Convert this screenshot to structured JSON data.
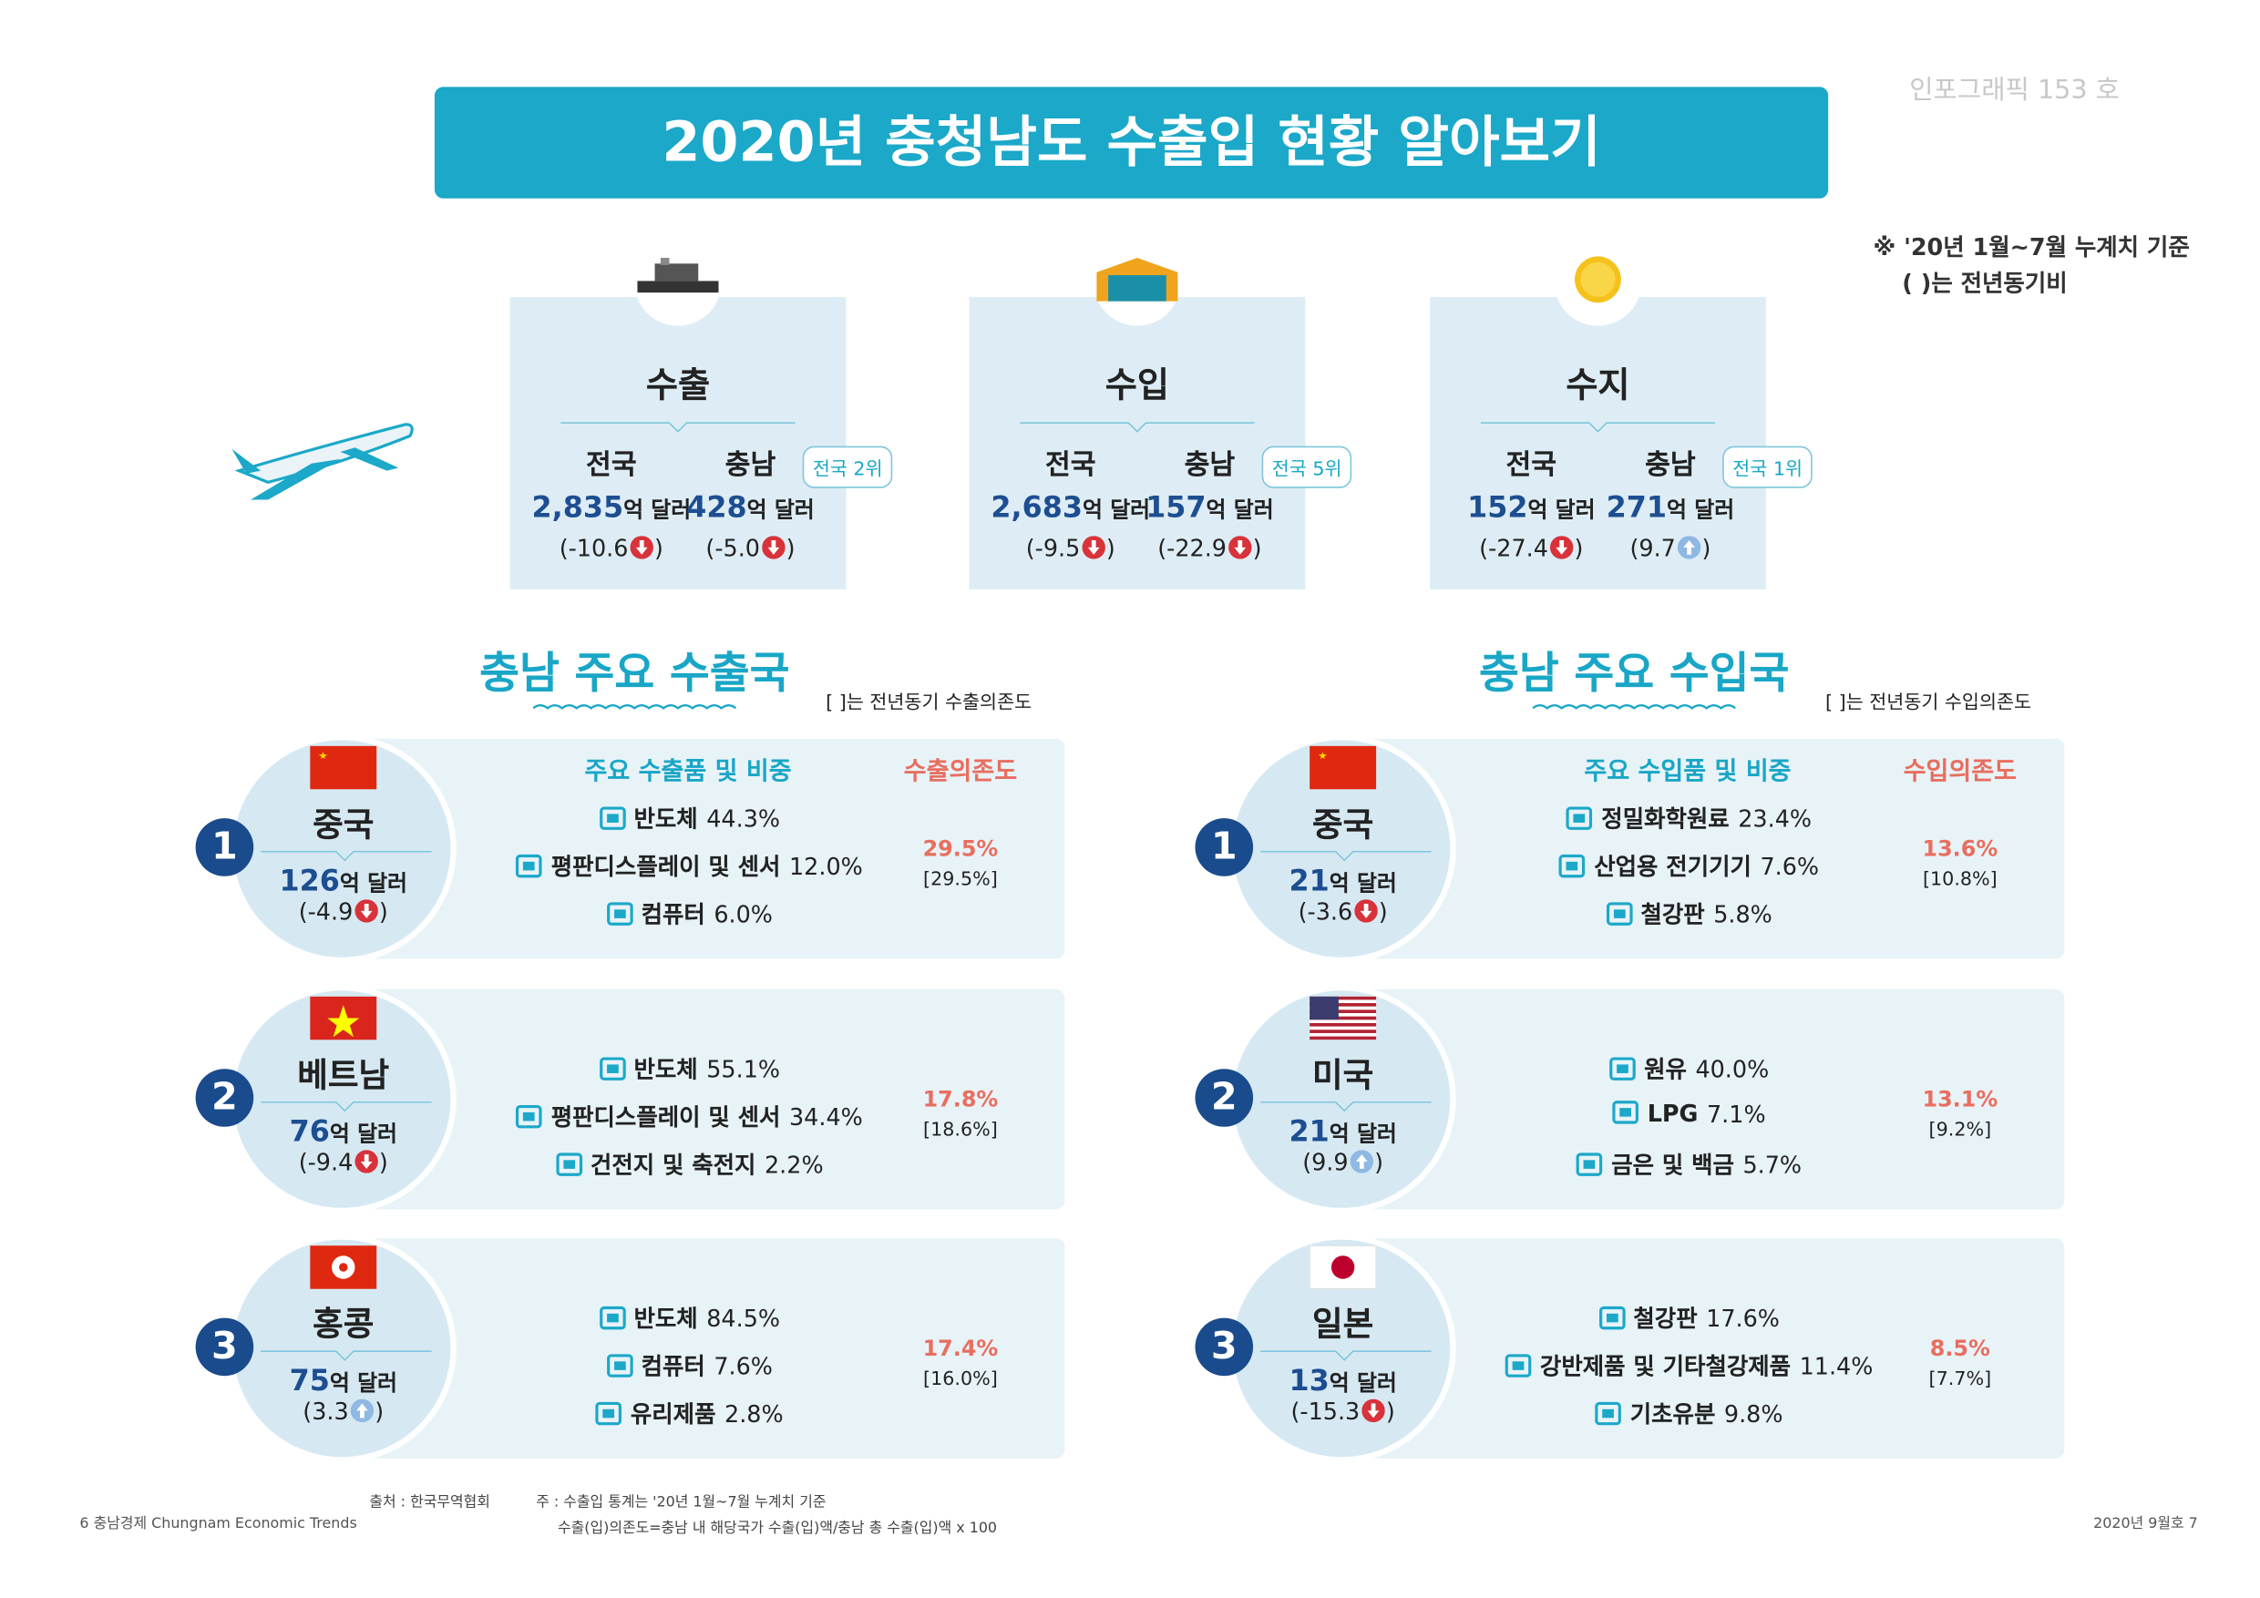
{
  "badge": "인포그래픽 153 호",
  "title": "2020년 충청남도 수출입 현황 알아보기",
  "notes": [
    "※ '20년 1월~7월 누계치 기준",
    "(    )는 전년동기비"
  ],
  "summary": [
    {
      "title": "수출",
      "rank": "전국 2위",
      "items": [
        {
          "label": "전국",
          "amount": "2,835",
          "unit": "억 달러",
          "pre": "(-10.6",
          "dir": "down",
          "post": ")"
        },
        {
          "label": "충남",
          "amount": "428",
          "unit": "억 달러",
          "pre": "(-5.0",
          "dir": "down",
          "post": ")"
        }
      ]
    },
    {
      "title": "수입",
      "rank": "전국 5위",
      "items": [
        {
          "label": "전국",
          "amount": "2,683",
          "unit": "억 달러",
          "pre": "(-9.5",
          "dir": "down",
          "post": ")"
        },
        {
          "label": "충남",
          "amount": "157",
          "unit": "억 달러",
          "pre": "(-22.9",
          "dir": "down",
          "post": ")"
        }
      ]
    },
    {
      "title": "수지",
      "rank": "전국 1위",
      "items": [
        {
          "label": "전국",
          "amount": "152",
          "unit": "억 달러",
          "pre": "(-27.4",
          "dir": "down",
          "post": ")"
        },
        {
          "label": "충남",
          "amount": "271",
          "unit": "억 달러",
          "pre": "(9.7",
          "dir": "up",
          "post": ")"
        }
      ]
    }
  ],
  "sections": [
    {
      "title": "충남 주요 수출국",
      "note": "[    ]는 전년동기 수출의존도",
      "col_products": "주요 수출품 및 비중",
      "col_dependency": "수출의존도",
      "countries": [
        {
          "rank": 1,
          "name": "중국",
          "amount": "126",
          "unit": "억 달러",
          "pre": "(-4.9",
          "dir": "down",
          "post": ")",
          "products": [
            {
              "name": "반도체",
              "share": "44.3%"
            },
            {
              "name": "평판디스플레이 및 센서",
              "share": "12.0%"
            },
            {
              "name": "컴퓨터",
              "share": "6.0%"
            }
          ],
          "dependency": "29.5%",
          "prev": "[29.5%]"
        },
        {
          "rank": 2,
          "name": "베트남",
          "amount": "76",
          "unit": "억 달러",
          "pre": "(-9.4",
          "dir": "down",
          "post": ")",
          "products": [
            {
              "name": "반도체",
              "share": "55.1%"
            },
            {
              "name": "평판디스플레이 및 센서",
              "share": "34.4%"
            },
            {
              "name": "건전지 및 축전지",
              "share": "2.2%"
            }
          ],
          "dependency": "17.8%",
          "prev": "[18.6%]"
        },
        {
          "rank": 3,
          "name": "홍콩",
          "amount": "75",
          "unit": "억 달러",
          "pre": "(3.3",
          "dir": "up",
          "post": ")",
          "products": [
            {
              "name": "반도체",
              "share": "84.5%"
            },
            {
              "name": "컴퓨터",
              "share": "7.6%"
            },
            {
              "name": "유리제품",
              "share": "2.8%"
            }
          ],
          "dependency": "17.4%",
          "prev": "[16.0%]"
        }
      ]
    },
    {
      "title": "충남 주요 수입국",
      "note": "[    ]는 전년동기 수입의존도",
      "col_products": "주요 수입품 및 비중",
      "col_dependency": "수입의존도",
      "countries": [
        {
          "rank": 1,
          "name": "중국",
          "amount": "21",
          "unit": "억 달러",
          "pre": "(-3.6",
          "dir": "down",
          "post": ")",
          "products": [
            {
              "name": "정밀화학원료",
              "share": "23.4%"
            },
            {
              "name": "산업용 전기기기",
              "share": "7.6%"
            },
            {
              "name": "철강판",
              "share": "5.8%"
            }
          ],
          "dependency": "13.6%",
          "prev": "[10.8%]"
        },
        {
          "rank": 2,
          "name": "미국",
          "amount": "21",
          "unit": "억 달러",
          "pre": "(9.9",
          "dir": "up",
          "post": ")",
          "products": [
            {
              "name": "원유",
              "share": "40.0%"
            },
            {
              "name": "LPG",
              "share": "7.1%"
            },
            {
              "name": "금은 및 백금",
              "share": "5.7%"
            }
          ],
          "dependency": "13.1%",
          "prev": "[9.2%]"
        },
        {
          "rank": 3,
          "name": "일본",
          "amount": "13",
          "unit": "억 달러",
          "pre": "(-15.3",
          "dir": "down",
          "post": ")",
          "products": [
            {
              "name": "철강판",
              "share": "17.6%"
            },
            {
              "name": "강반제품 및 기타철강제품",
              "share": "11.4%"
            },
            {
              "name": "기초유분",
              "share": "9.8%"
            }
          ],
          "dependency": "8.5%",
          "prev": "[7.7%]"
        }
      ]
    }
  ],
  "footer": {
    "source": "출처 : 한국무역협회",
    "notes": [
      "주 : 수출입 통계는 '20년 1월~7월 누계치 기준",
      "수출(입)의존도=충남 내 해당국가 수출(입)액/충남 총 수출(입)액 x 100"
    ],
    "left": "6 충남경제 Chungnam Economic Trends",
    "right": "2020년 9월호 7"
  }
}
